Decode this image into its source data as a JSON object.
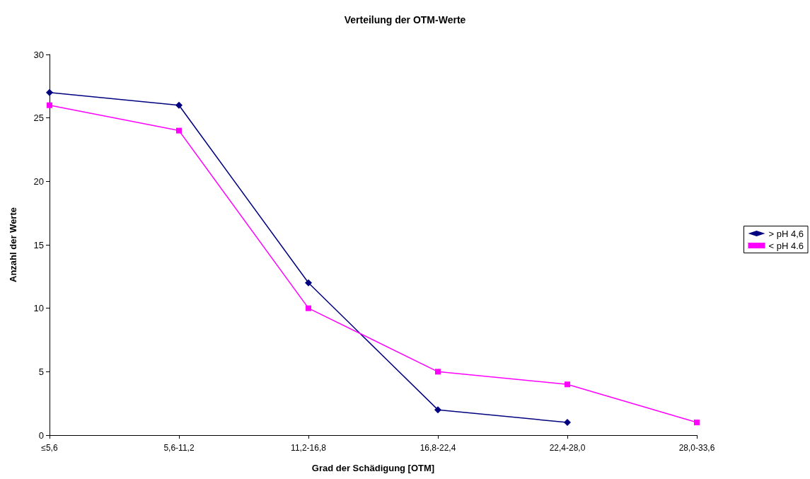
{
  "chart_data": {
    "type": "line",
    "title": "Verteilung der OTM-Werte",
    "xlabel": "Grad der Schädigung [OTM]",
    "ylabel": "Anzahl der Werte",
    "categories": [
      "≤5,6",
      "5,6-11,2",
      "11,2-16,8",
      "16,8-22,4",
      "22,4-28,0",
      "28,0-33,6"
    ],
    "series": [
      {
        "name": "> pH 4,6",
        "color": "#000080",
        "marker": "diamond",
        "values": [
          27,
          26,
          12,
          2,
          1,
          null
        ]
      },
      {
        "name": "< pH 4.6",
        "color": "#ff00ff",
        "marker": "square",
        "values": [
          26,
          24,
          10,
          5,
          4,
          1
        ]
      }
    ],
    "ylim": [
      0,
      30
    ],
    "yticks": [
      0,
      5,
      10,
      15,
      20,
      25,
      30
    ],
    "grid": false,
    "legend": "right",
    "line_style": "solid"
  }
}
